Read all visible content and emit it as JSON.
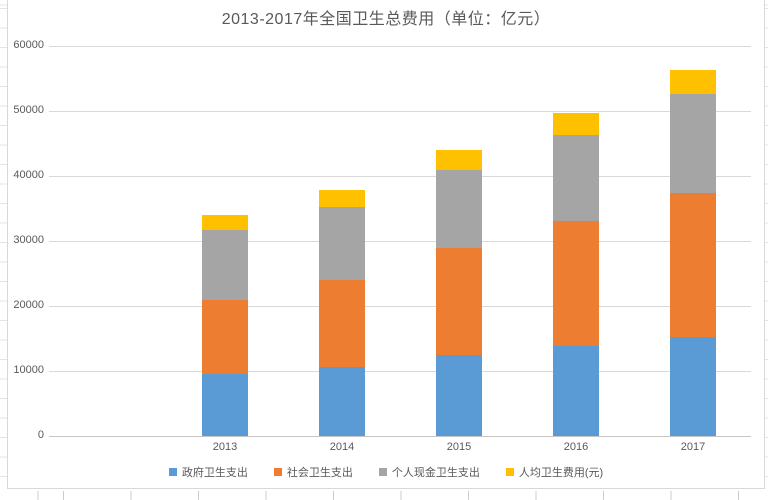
{
  "chart_data": {
    "type": "bar",
    "stacked": true,
    "title": "2013-2017年全国卫生总费用（单位：亿元）",
    "categories": [
      "2013",
      "2014",
      "2015",
      "2016",
      "2017"
    ],
    "series": [
      {
        "name": "政府卫生支出",
        "slug": "government-health-expenditure",
        "color": "#5B9BD5",
        "values": [
          9545.8,
          10579.2,
          12475.3,
          13910.3,
          15205.9
        ]
      },
      {
        "name": "社会卫生支出",
        "slug": "social-health-expenditure",
        "color": "#ED7D31",
        "values": [
          11393.8,
          13437.8,
          16506.7,
          19096.7,
          22258.8
        ]
      },
      {
        "name": "个人现金卫生支出",
        "slug": "personal-cash-health-expenditure",
        "color": "#A5A5A5",
        "values": [
          10729.3,
          11295.5,
          11992.7,
          13337.9,
          15133.6
        ]
      },
      {
        "name": "人均卫生费用(元)",
        "slug": "per-capita-health-expense",
        "color": "#FFC000",
        "values": [
          2327.4,
          2581.7,
          2980.8,
          3351.7,
          3712.2
        ]
      }
    ],
    "xlabel": "",
    "ylabel": "",
    "ylim": [
      0,
      60000
    ],
    "ytick_interval": 10000,
    "yticks": [
      "0",
      "10000",
      "20000",
      "30000",
      "40000",
      "50000",
      "60000"
    ],
    "grid": true,
    "legend_position": "bottom"
  },
  "appearance": {
    "text_color": "#595959",
    "gridline_color": "#D9D9D9",
    "axis_line_color": "#C6C6C6",
    "chart_border_color": "#D9D9D9",
    "background_color": "#FFFFFF"
  }
}
